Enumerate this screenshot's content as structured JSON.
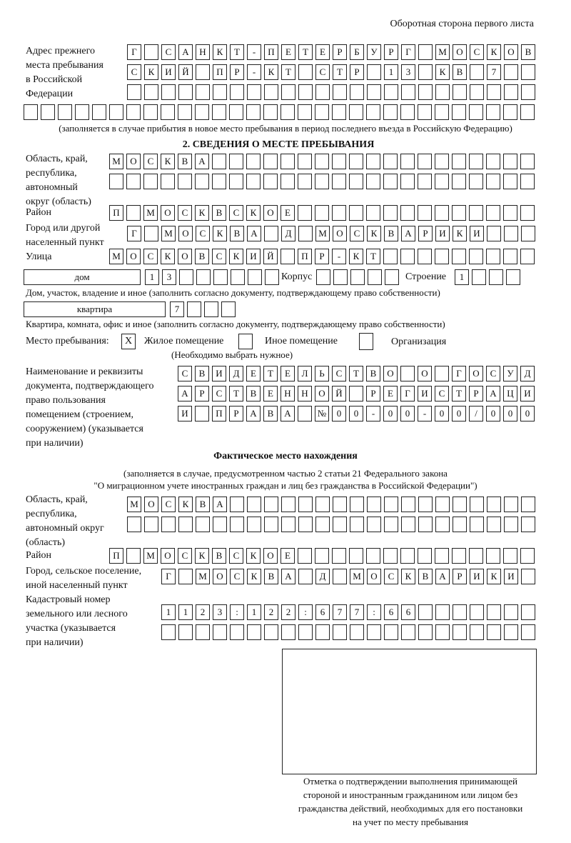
{
  "header": {
    "side_note": "Оборотная сторона первого листа"
  },
  "prev_address": {
    "label": [
      "Адрес прежнего",
      "места пребывания",
      "в Российской",
      "Федерации"
    ],
    "rows": [
      "Г САНКТ-ПЕТЕРБУРГ МОСКОВ",
      "СКИЙ ПР-КТ СТР 13 КВ 7  ",
      "                        ",
      "                              "
    ],
    "note": "(заполняется в случае прибытия в новое место пребывания в период последнего въезда в Российскую Федерацию)"
  },
  "section2": {
    "title": "2. СВЕДЕНИЯ О МЕСТЕ ПРЕБЫВАНИЯ",
    "region_label": [
      "Область, край,",
      "республика,",
      "автономный",
      "округ (область)"
    ],
    "region_rows": [
      "МОСКВА                   ",
      "                         "
    ],
    "district_label": "Район",
    "district_row": "П МОСКВСКОЕ              ",
    "city_label": [
      "Город или другой",
      "населенный пункт"
    ],
    "city_row": "Г МОСКВА Д МОСКВАРИКИ   ",
    "street_label": "Улица",
    "street_row": "МОСКОВСКИЙ ПР-КТ         ",
    "house_type": "дом",
    "house_cells": "13      ",
    "korpus_label": "Корпус",
    "korpus_cells": "     ",
    "stroenie_label": "Строение",
    "stroenie_cells": "1   ",
    "house_note": "Дом, участок, владение и иное (заполнить согласно документу, подтверждающему право собственности)",
    "apt_type": "квартира",
    "apt_cells": "7   ",
    "apt_note": "Квартира, комната, офис и иное (заполнить согласно документу, подтверждающему право собственности)",
    "stay_label": "Место пребывания:",
    "options": [
      {
        "label": "Жилое помещение",
        "mark": "X"
      },
      {
        "label": "Иное помещение",
        "mark": ""
      },
      {
        "label": "Организация",
        "mark": ""
      }
    ],
    "choose_note": "(Необходимо выбрать нужное)",
    "doc_label": [
      "Наименование и реквизиты",
      "документа, подтверждающего",
      "право пользования",
      "помещением (строением,",
      "сооружением) (указывается",
      "при наличии)"
    ],
    "doc_rows": [
      "СВИДЕТЕЛЬСТВО О ГОСУД",
      "АРСТВЕННОЙ РЕГИСТРАЦИ",
      "И ПРАВА №00-00-00/000"
    ]
  },
  "actual": {
    "title": "Фактическое место нахождения",
    "note1": "(заполняется в случае, предусмотренном частью 2 статьи 21 Федерального закона",
    "note2": "\"О миграционном учете иностранных граждан и лиц без гражданства в Российской Федерации\")",
    "region_label": [
      "Область, край,",
      "республика,",
      "автономный округ",
      "(область)"
    ],
    "region_rows": [
      "МОСКВА                  ",
      "                        "
    ],
    "district_label": "Район",
    "district_row": "П МОСКВСКОЕ              ",
    "city_label": [
      "Город, сельское поселение,",
      "иной населенный пункт"
    ],
    "city_row": "Г МОСКВА Д МОСКВАРИКИ ",
    "cadastral_label": [
      "Кадастровый номер",
      "земельного или лесного",
      "участка (указывается",
      "при наличии)"
    ],
    "cadastral_rows": [
      "1123:122:677:66       ",
      "                      "
    ]
  },
  "confirmation": {
    "caption": [
      "Отметка о подтверждении выполнения принимающей",
      "стороной и иностранным гражданином или лицом без",
      "гражданства действий, необходимых для его постановки",
      "на учет по месту пребывания"
    ]
  }
}
